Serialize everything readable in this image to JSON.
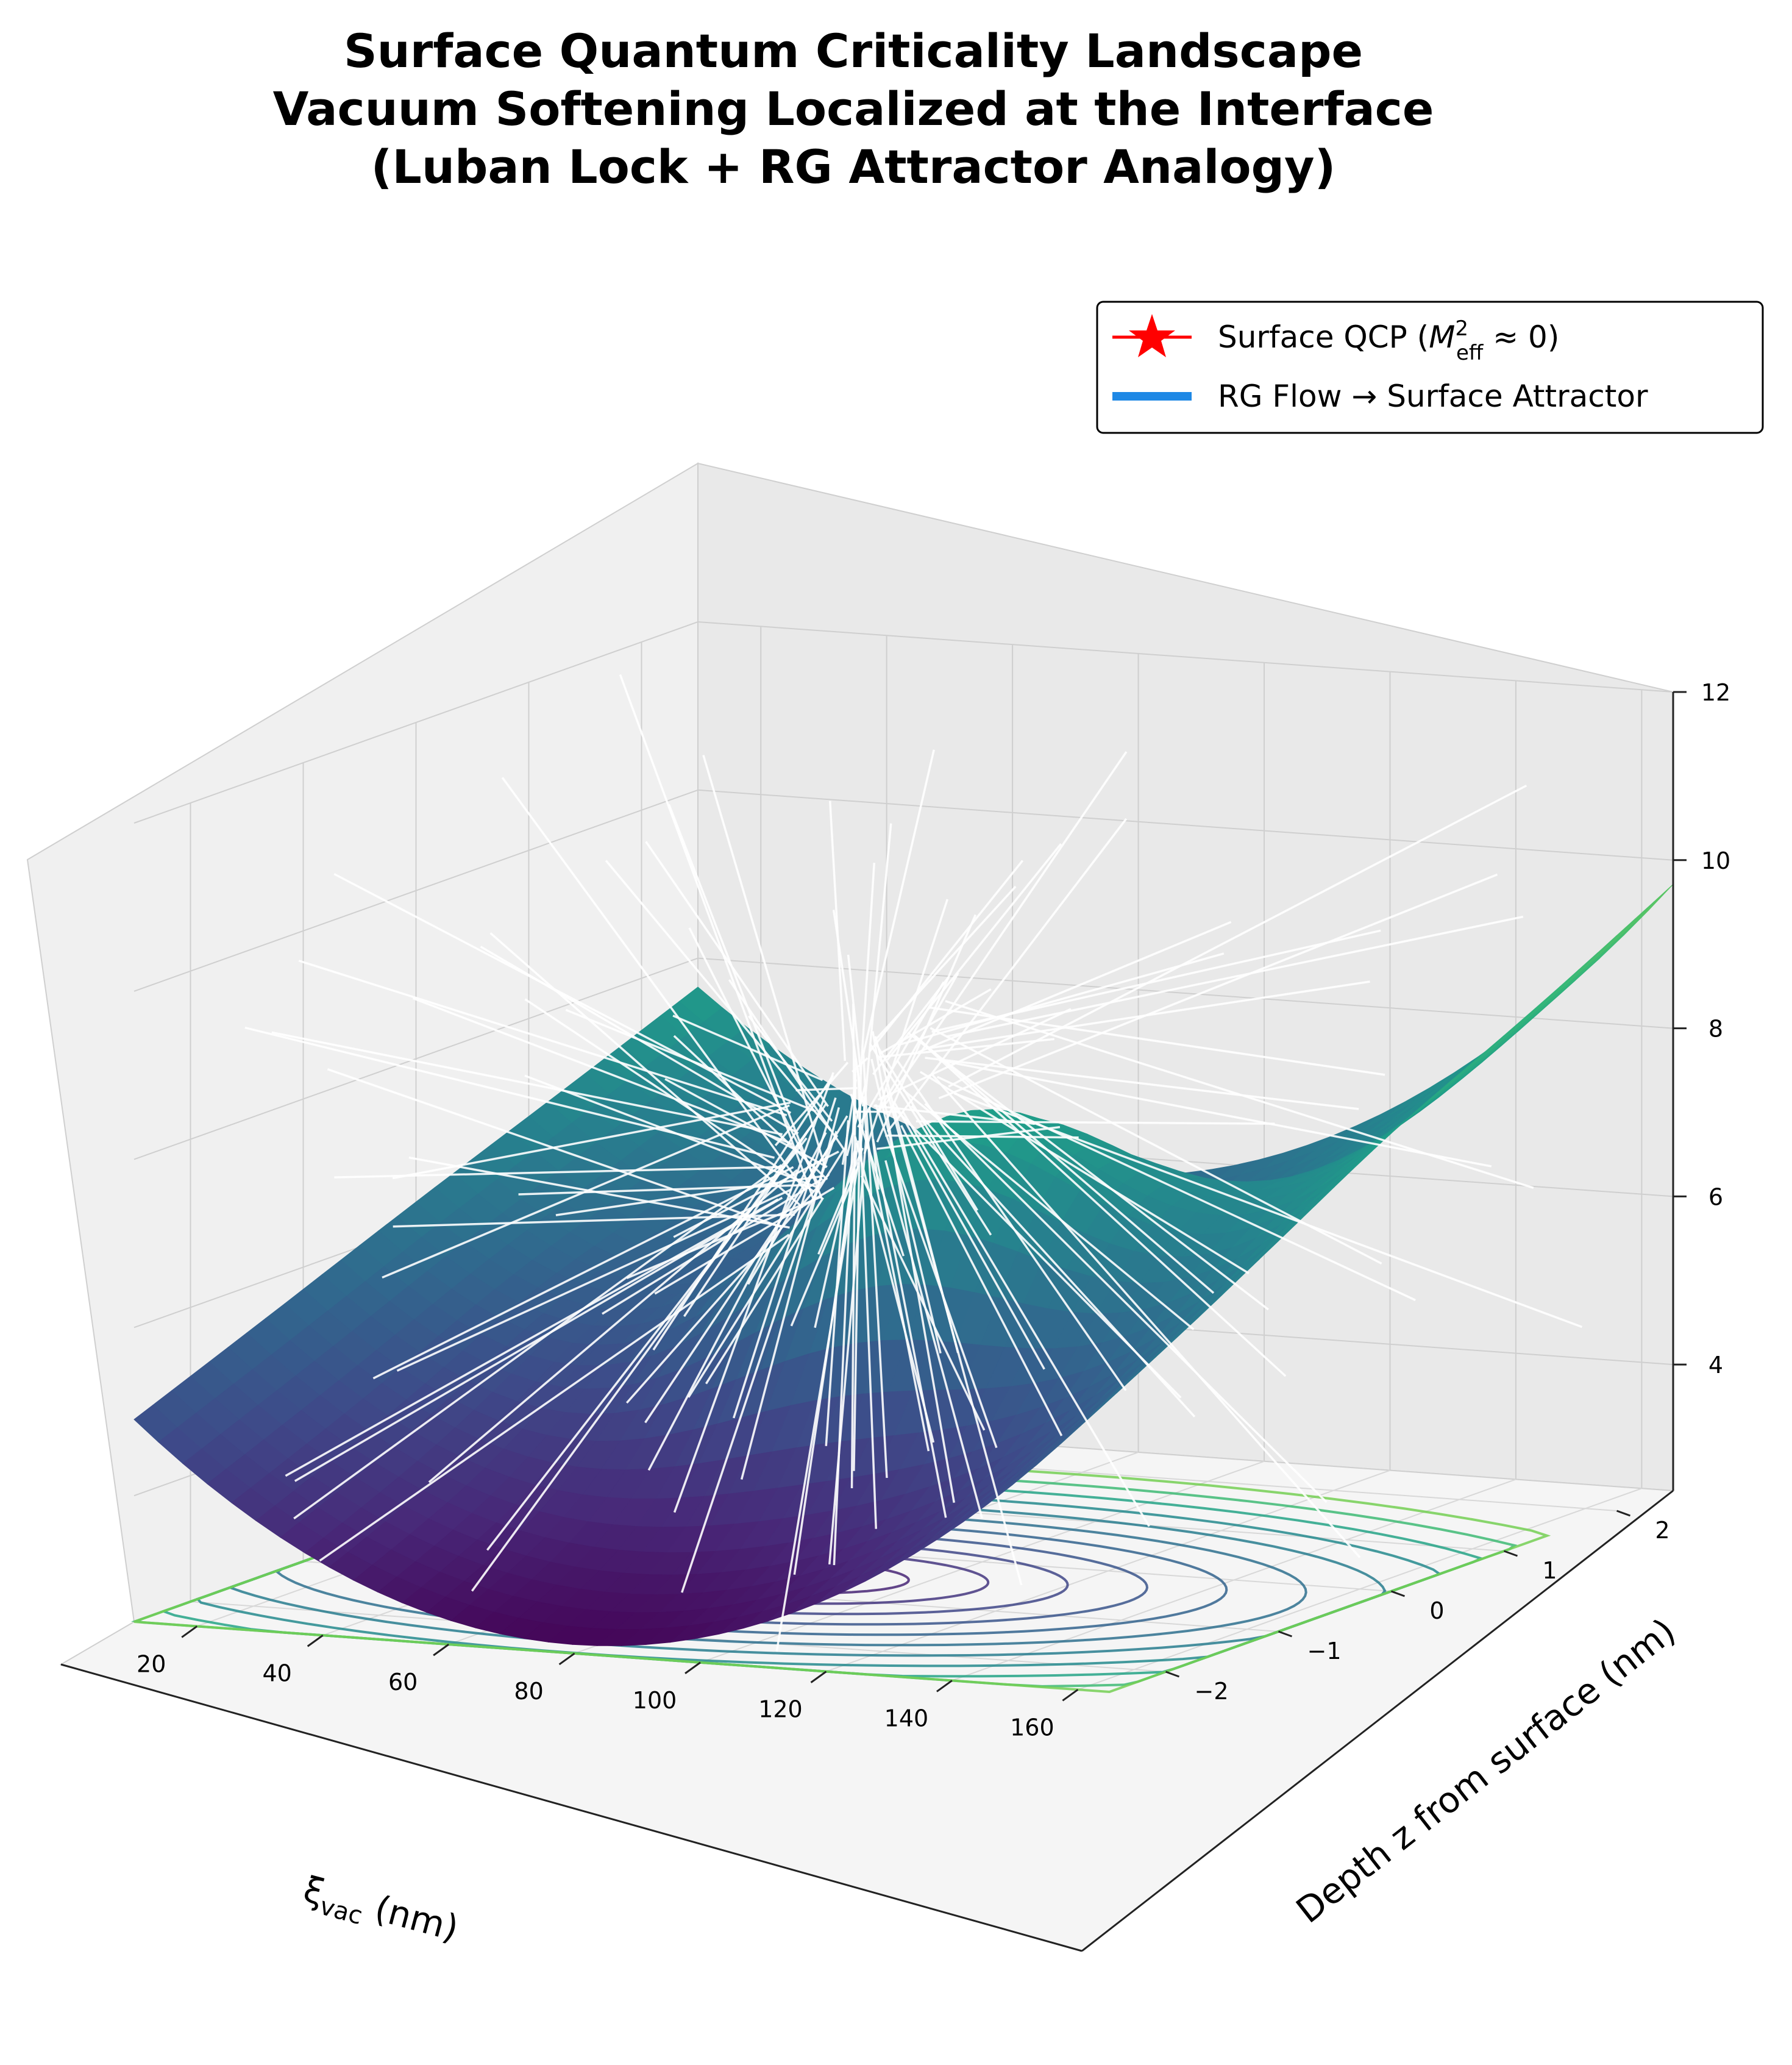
{
  "chart_data": {
    "type": "surface3d",
    "title_lines": [
      "Surface Quantum Criticality Landscape",
      "Vacuum Softening Localized at the Interface",
      "(Luban Lock + RG Attractor Analogy)"
    ],
    "xlabel": "ξ_vac (nm)",
    "xlabel_main": "ξ",
    "xlabel_sub": "vac",
    "xlabel_unit": " (nm)",
    "ylabel": "Depth z from surface (nm)",
    "zlabel": "",
    "x_ticks": [
      "20",
      "40",
      "60",
      "80",
      "100",
      "120",
      "140",
      "160"
    ],
    "y_ticks": [
      "−2",
      "−1",
      "0",
      "1",
      "2"
    ],
    "z_ticks": [
      "4",
      "6",
      "8",
      "10",
      "12"
    ],
    "xlim": [
      10,
      165
    ],
    "ylim": [
      -2.5,
      2.5
    ],
    "zlim": [
      2.5,
      12
    ],
    "colormap": "viridis",
    "legend": {
      "position": "top-right",
      "entries": [
        {
          "label": "Surface QCP (M²eff ≈ 0)",
          "label_main": "Surface QCP (",
          "label_math": "M",
          "label_sup": "2",
          "label_sub": "eff",
          "label_tail": " ≈ 0)",
          "marker": "star",
          "color": "#ff0000"
        },
        {
          "label": "RG Flow → Surface Attractor",
          "marker": "line",
          "color": "#1e88e5"
        }
      ]
    },
    "surface_shape": {
      "base_min_x": 80,
      "base_min_z": 2.6,
      "corner_values": [
        {
          "x": 10,
          "y": 2.5,
          "z": 7.2
        },
        {
          "x": 165,
          "y": 2.5,
          "z": 11.3
        },
        {
          "x": 10,
          "y": -2.5,
          "z": 5.4
        },
        {
          "x": 165,
          "y": -2.5,
          "z": 8.8
        }
      ],
      "ridge_peak_z": 7.6
    }
  }
}
